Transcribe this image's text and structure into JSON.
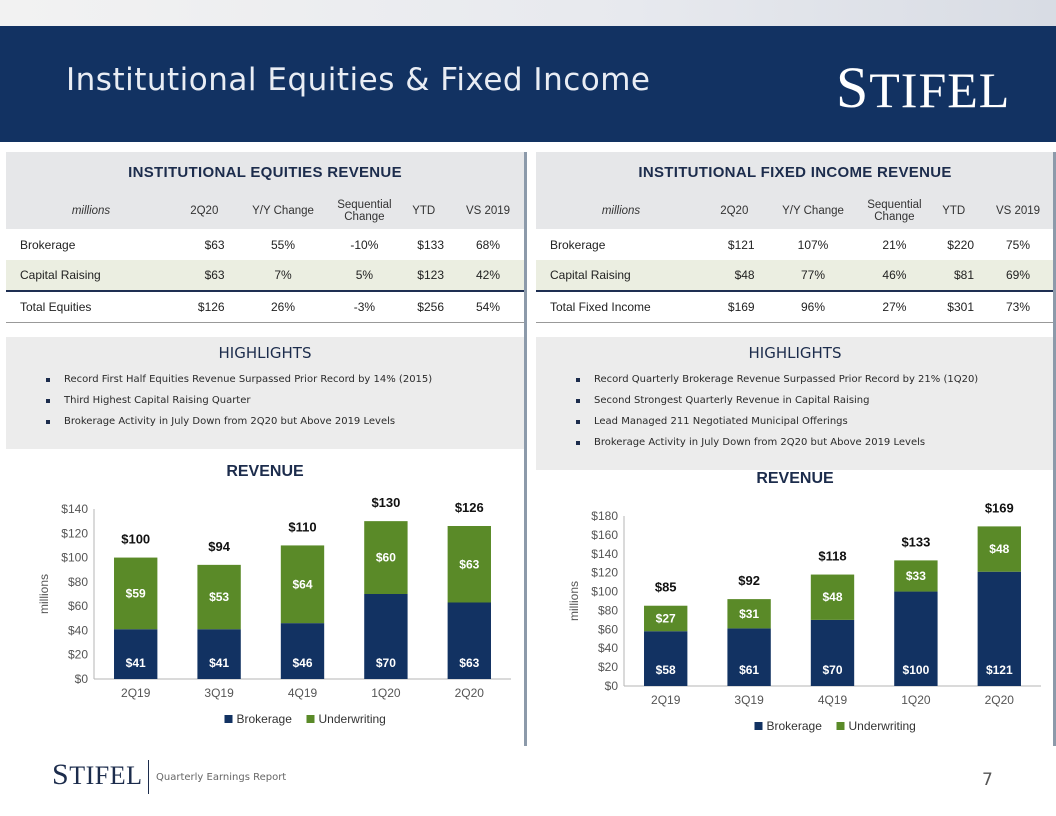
{
  "header": {
    "title": "Institutional Equities & Fixed Income",
    "logo_first": "S",
    "logo_rest": "TIFEL"
  },
  "equities": {
    "table_title": "INSTITUTIONAL EQUITIES REVENUE",
    "columns": [
      "millions",
      "2Q20",
      "Y/Y Change",
      "Sequential Change",
      "YTD",
      "VS 2019"
    ],
    "rows": [
      {
        "label": "Brokerage",
        "q": "$63",
        "yoy": "55%",
        "seq": "-10%",
        "ytd": "$133",
        "vs": "68%"
      },
      {
        "label": "Capital Raising",
        "q": "$63",
        "yoy": "7%",
        "seq": "5%",
        "ytd": "$123",
        "vs": "42%"
      },
      {
        "label": "Total Equities",
        "q": "$126",
        "yoy": "26%",
        "seq": "-3%",
        "ytd": "$256",
        "vs": "54%"
      }
    ],
    "highlights_title": "HIGHLIGHTS",
    "highlights": [
      "Record First Half Equities Revenue Surpassed Prior Record by 14% (2015)",
      "Third Highest Capital Raising Quarter",
      "Brokerage Activity in July Down from 2Q20 but Above 2019 Levels"
    ],
    "revenue_title": "REVENUE"
  },
  "fixed_income": {
    "table_title": "INSTITUTIONAL FIXED INCOME REVENUE",
    "columns": [
      "millions",
      "2Q20",
      "Y/Y Change",
      "Sequential Change",
      "YTD",
      "VS 2019"
    ],
    "rows": [
      {
        "label": "Brokerage",
        "q": "$121",
        "yoy": "107%",
        "seq": "21%",
        "ytd": "$220",
        "vs": "75%"
      },
      {
        "label": "Capital Raising",
        "q": "$48",
        "yoy": "77%",
        "seq": "46%",
        "ytd": "$81",
        "vs": "69%"
      },
      {
        "label": "Total Fixed Income",
        "q": "$169",
        "yoy": "96%",
        "seq": "27%",
        "ytd": "$301",
        "vs": "73%"
      }
    ],
    "highlights_title": "HIGHLIGHTS",
    "highlights": [
      "Record Quarterly Brokerage Revenue Surpassed Prior Record by 21% (1Q20)",
      "Second Strongest Quarterly Revenue in Capital Raising",
      "Lead Managed 211 Negotiated Municipal Offerings",
      "Brokerage Activity in July Down from 2Q20 but Above 2019 Levels"
    ],
    "revenue_title": "REVENUE"
  },
  "colors": {
    "brokerage": "#123262",
    "underwriting": "#5a8a28",
    "header_bg": "#123262"
  },
  "chart_data": [
    {
      "type": "bar",
      "stacked": true,
      "categories": [
        "2Q19",
        "3Q19",
        "4Q19",
        "1Q20",
        "2Q20"
      ],
      "series": [
        {
          "name": "Brokerage",
          "values": [
            41,
            41,
            46,
            70,
            63
          ]
        },
        {
          "name": "Underwriting",
          "values": [
            59,
            53,
            64,
            60,
            63
          ]
        }
      ],
      "totals": [
        100,
        94,
        110,
        130,
        126
      ],
      "ylabel": "millions",
      "ylim": [
        0,
        140
      ],
      "yticks": [
        0,
        20,
        40,
        60,
        80,
        100,
        120,
        140
      ],
      "legend": "bottom",
      "value_prefix": "$"
    },
    {
      "type": "bar",
      "stacked": true,
      "categories": [
        "2Q19",
        "3Q19",
        "4Q19",
        "1Q20",
        "2Q20"
      ],
      "series": [
        {
          "name": "Brokerage",
          "values": [
            58,
            61,
            70,
            100,
            121
          ]
        },
        {
          "name": "Underwriting",
          "values": [
            27,
            31,
            48,
            33,
            48
          ]
        }
      ],
      "totals": [
        85,
        92,
        118,
        133,
        169
      ],
      "ylabel": "millions",
      "ylim": [
        0,
        180
      ],
      "yticks": [
        0,
        20,
        40,
        60,
        80,
        100,
        120,
        140,
        160,
        180
      ],
      "legend": "bottom",
      "value_prefix": "$"
    }
  ],
  "footer": {
    "logo_first": "S",
    "logo_rest": "TIFEL",
    "text": "Quarterly Earnings Report",
    "page": "7"
  }
}
